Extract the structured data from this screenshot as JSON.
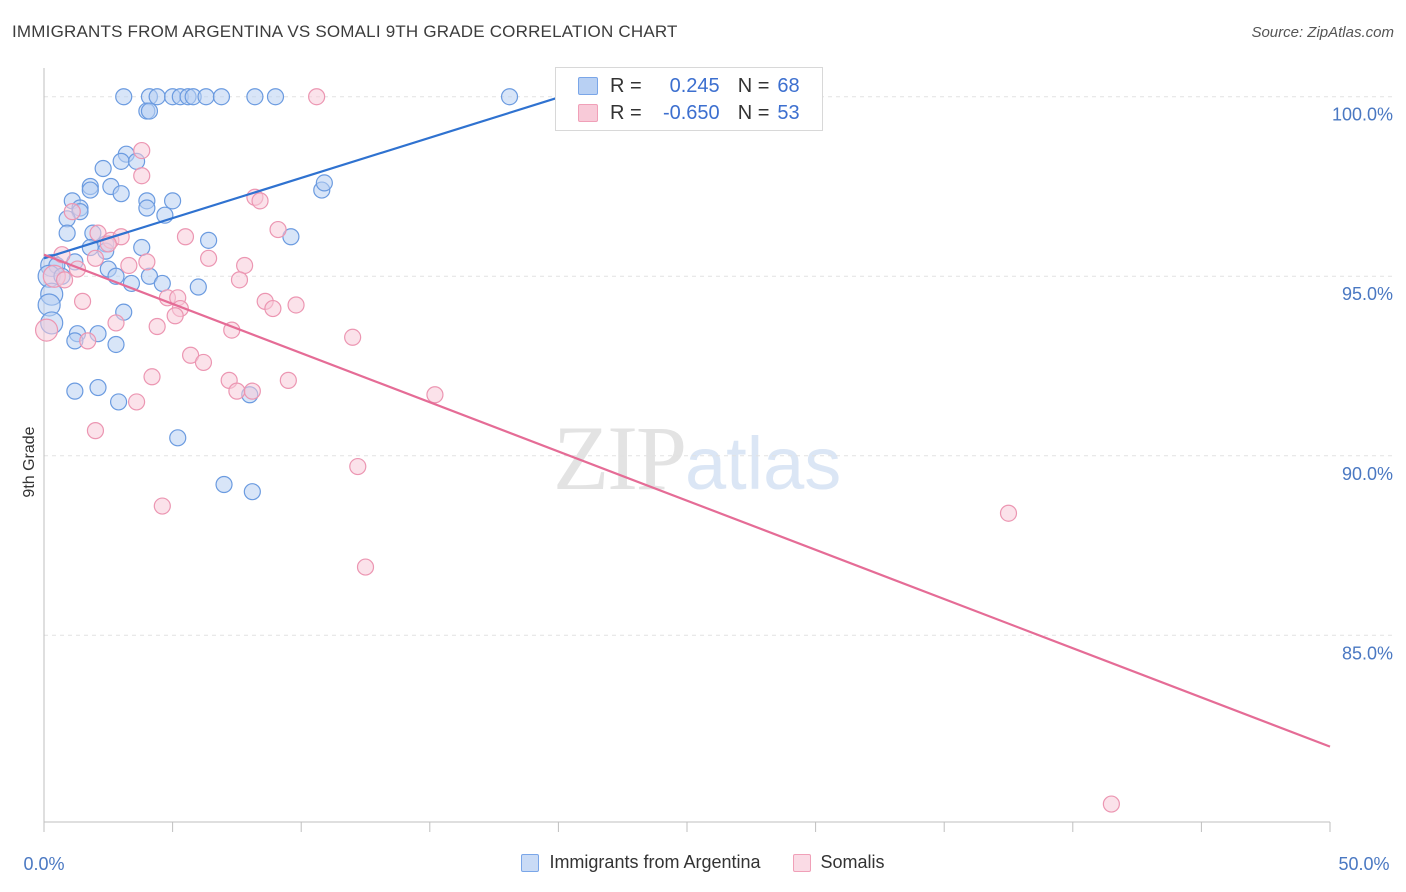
{
  "title": "IMMIGRANTS FROM ARGENTINA VS SOMALI 9TH GRADE CORRELATION CHART",
  "source": "Source: ZipAtlas.com",
  "watermark": {
    "zip": "ZIP",
    "atlas": "atlas"
  },
  "legend": {
    "rows": [
      {
        "r_label": "R =",
        "r_value": "0.245",
        "n_label": "N =",
        "n_value": "68",
        "color": "#7aa6e8",
        "fill": "#b8d0f3"
      },
      {
        "r_label": "R =",
        "r_value": "-0.650",
        "n_label": "N =",
        "n_value": "53",
        "color": "#f0a0b8",
        "fill": "#f8cad8"
      }
    ]
  },
  "bottom_legend": [
    {
      "label": "Immigrants from Argentina",
      "color": "#7aa6e8",
      "fill": "#c9dbf6"
    },
    {
      "label": "Somalis",
      "color": "#f0a0b8",
      "fill": "#fadbe5"
    }
  ],
  "chart_data": {
    "type": "scatter",
    "title": "IMMIGRANTS FROM ARGENTINA VS SOMALI 9TH GRADE CORRELATION CHART",
    "xlabel": "",
    "ylabel": "9th Grade",
    "xlim": [
      0,
      50
    ],
    "ylim": [
      79.8,
      100.8
    ],
    "x_tick_labels": [
      "0.0%",
      "50.0%"
    ],
    "y_ticks": [
      100,
      95,
      90,
      85
    ],
    "y_tick_labels": [
      "100.0%",
      "95.0%",
      "90.0%",
      "85.0%"
    ],
    "grid": true,
    "legend_position": "top-center",
    "series": [
      {
        "name": "Immigrants from Argentina",
        "color": "#6b9be0",
        "fill": "#b8d0f3",
        "trend": {
          "x": [
            0,
            20.1
          ],
          "y": [
            95.5,
            100.0
          ],
          "color": "#2f72d0"
        },
        "points": [
          [
            3.1,
            100
          ],
          [
            4.1,
            100
          ],
          [
            4.4,
            100
          ],
          [
            5.0,
            100
          ],
          [
            5.3,
            100
          ],
          [
            5.6,
            100
          ],
          [
            5.8,
            100
          ],
          [
            6.3,
            100
          ],
          [
            6.9,
            100
          ],
          [
            8.2,
            100
          ],
          [
            9.0,
            100
          ],
          [
            18.1,
            100
          ],
          [
            4.0,
            99.6
          ],
          [
            4.1,
            99.6
          ],
          [
            3.2,
            98.4
          ],
          [
            3.0,
            98.2
          ],
          [
            3.6,
            98.2
          ],
          [
            2.3,
            98.0
          ],
          [
            1.8,
            97.5
          ],
          [
            2.6,
            97.5
          ],
          [
            1.8,
            97.4
          ],
          [
            3.0,
            97.3
          ],
          [
            1.1,
            97.1
          ],
          [
            5.0,
            97.1
          ],
          [
            4.0,
            97.1
          ],
          [
            1.4,
            96.9
          ],
          [
            1.4,
            96.8
          ],
          [
            4.0,
            96.9
          ],
          [
            4.7,
            96.7
          ],
          [
            0.9,
            96.6
          ],
          [
            0.9,
            96.2
          ],
          [
            1.9,
            96.2
          ],
          [
            9.6,
            96.1
          ],
          [
            6.4,
            96.0
          ],
          [
            2.4,
            95.9
          ],
          [
            1.8,
            95.8
          ],
          [
            3.8,
            95.8
          ],
          [
            2.4,
            95.7
          ],
          [
            0.3,
            95.3
          ],
          [
            0.5,
            95.3
          ],
          [
            1.2,
            95.4
          ],
          [
            2.5,
            95.2
          ],
          [
            0.2,
            95.0
          ],
          [
            0.7,
            95.0
          ],
          [
            2.8,
            95.0
          ],
          [
            4.1,
            95.0
          ],
          [
            3.4,
            94.8
          ],
          [
            4.6,
            94.8
          ],
          [
            6.0,
            94.7
          ],
          [
            0.3,
            94.5
          ],
          [
            0.2,
            94.2
          ],
          [
            0.3,
            93.7
          ],
          [
            3.1,
            94.0
          ],
          [
            1.3,
            93.4
          ],
          [
            2.1,
            93.4
          ],
          [
            1.2,
            93.2
          ],
          [
            2.8,
            93.1
          ],
          [
            1.2,
            91.8
          ],
          [
            2.1,
            91.9
          ],
          [
            2.9,
            91.5
          ],
          [
            8.0,
            91.7
          ],
          [
            5.2,
            90.5
          ],
          [
            7.0,
            89.2
          ],
          [
            8.1,
            89.0
          ],
          [
            10.8,
            97.4
          ],
          [
            10.9,
            97.6
          ]
        ]
      },
      {
        "name": "Somalis",
        "color": "#ec96b2",
        "fill": "#f8cad8",
        "trend": {
          "x": [
            0,
            50
          ],
          "y": [
            95.6,
            81.9
          ],
          "color": "#e56c96"
        },
        "points": [
          [
            10.6,
            100
          ],
          [
            3.8,
            98.5
          ],
          [
            3.8,
            97.8
          ],
          [
            8.2,
            97.2
          ],
          [
            8.4,
            97.1
          ],
          [
            1.1,
            96.8
          ],
          [
            9.1,
            96.3
          ],
          [
            2.1,
            96.2
          ],
          [
            2.6,
            96.0
          ],
          [
            3.0,
            96.1
          ],
          [
            5.5,
            96.1
          ],
          [
            2.5,
            95.9
          ],
          [
            0.7,
            95.6
          ],
          [
            2.0,
            95.5
          ],
          [
            4.0,
            95.4
          ],
          [
            6.4,
            95.5
          ],
          [
            7.8,
            95.3
          ],
          [
            3.3,
            95.3
          ],
          [
            0.4,
            95.0
          ],
          [
            1.3,
            95.2
          ],
          [
            0.8,
            94.9
          ],
          [
            7.6,
            94.9
          ],
          [
            4.8,
            94.4
          ],
          [
            5.2,
            94.4
          ],
          [
            8.6,
            94.3
          ],
          [
            9.8,
            94.2
          ],
          [
            1.5,
            94.3
          ],
          [
            8.9,
            94.1
          ],
          [
            5.3,
            94.1
          ],
          [
            5.1,
            93.9
          ],
          [
            2.8,
            93.7
          ],
          [
            4.4,
            93.6
          ],
          [
            7.3,
            93.5
          ],
          [
            0.1,
            93.5
          ],
          [
            12.0,
            93.3
          ],
          [
            1.7,
            93.2
          ],
          [
            5.7,
            92.8
          ],
          [
            6.2,
            92.6
          ],
          [
            4.2,
            92.2
          ],
          [
            7.2,
            92.1
          ],
          [
            9.5,
            92.1
          ],
          [
            7.5,
            91.8
          ],
          [
            8.1,
            91.8
          ],
          [
            15.2,
            91.7
          ],
          [
            3.6,
            91.5
          ],
          [
            2.0,
            90.7
          ],
          [
            12.2,
            89.7
          ],
          [
            4.6,
            88.6
          ],
          [
            37.5,
            88.4
          ],
          [
            12.5,
            86.9
          ],
          [
            41.5,
            80.3
          ]
        ]
      }
    ]
  }
}
